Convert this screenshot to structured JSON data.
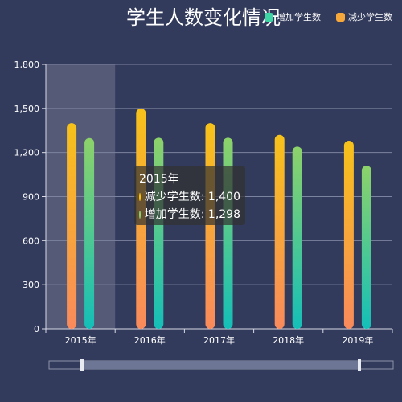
{
  "chart_data": {
    "type": "bar",
    "title": "学生人数变化情况",
    "categories": [
      "2015年",
      "2016年",
      "2017年",
      "2018年",
      "2019年"
    ],
    "series": [
      {
        "name": "减少学生数",
        "values": [
          1400,
          1500,
          1400,
          1320,
          1280
        ],
        "color_top": "#f7c21a",
        "color_bottom": "#f98a5c"
      },
      {
        "name": "增加学生数",
        "values": [
          1298,
          1300,
          1300,
          1240,
          1110
        ],
        "color_top": "#8dd26a",
        "color_bottom": "#14bfb8"
      }
    ],
    "ylim": [
      0,
      1800
    ],
    "yticks": [
      "0",
      "300",
      "600",
      "900",
      "1,200",
      "1,500",
      "1,800"
    ],
    "grid": true,
    "legend_position": "top-right",
    "legend": [
      {
        "name": "增加学生数",
        "color": "#3dd6a4"
      },
      {
        "name": "减少学生数",
        "color": "#f7a83a"
      }
    ],
    "tooltip": {
      "title": "2015年",
      "rows": [
        {
          "label": "减少学生数: 1,400",
          "color": "#ffc20f"
        },
        {
          "label": "增加学生数: 1,298",
          "color": "#8fd16d"
        }
      ]
    },
    "highlight_category": "2015年"
  }
}
